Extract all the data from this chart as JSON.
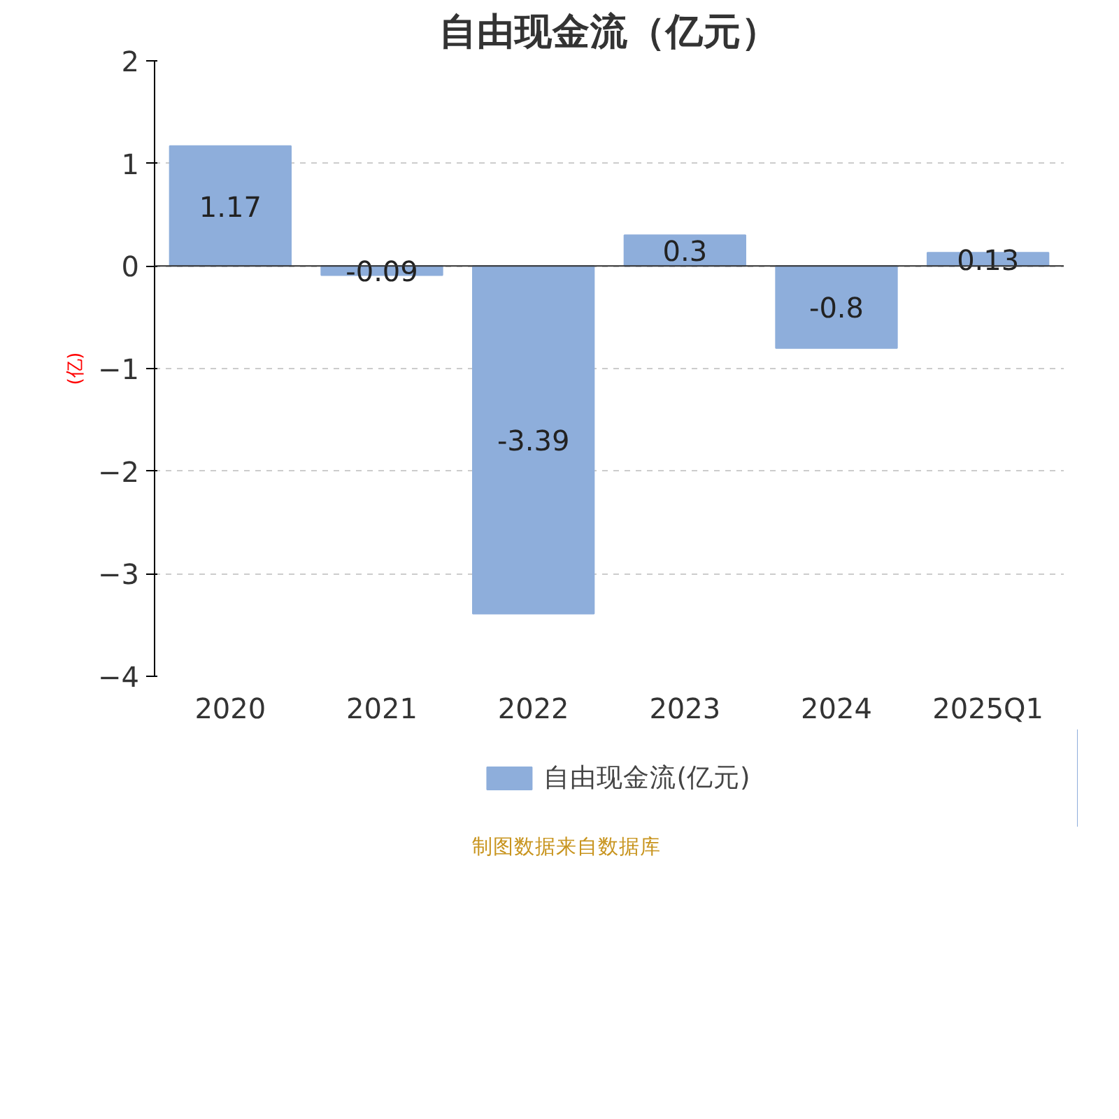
{
  "chart_data": {
    "type": "bar",
    "title": "自由现金流（亿元）",
    "ylabel": "(亿)",
    "categories": [
      "2020",
      "2021",
      "2022",
      "2023",
      "2024",
      "2025Q1"
    ],
    "series": [
      {
        "name": "自由现金流(亿元)",
        "color": "#8eaedb",
        "values": [
          1.17,
          -0.09,
          -3.39,
          0.3,
          -0.8,
          0.13
        ]
      }
    ],
    "ylim": [
      -4,
      2
    ],
    "yticks": [
      -4,
      -3,
      -2,
      -1,
      0,
      1,
      2
    ],
    "grid": "y",
    "legend": "bottom",
    "data_labels": true,
    "annotations": [
      "制图数据来自数据库"
    ]
  }
}
